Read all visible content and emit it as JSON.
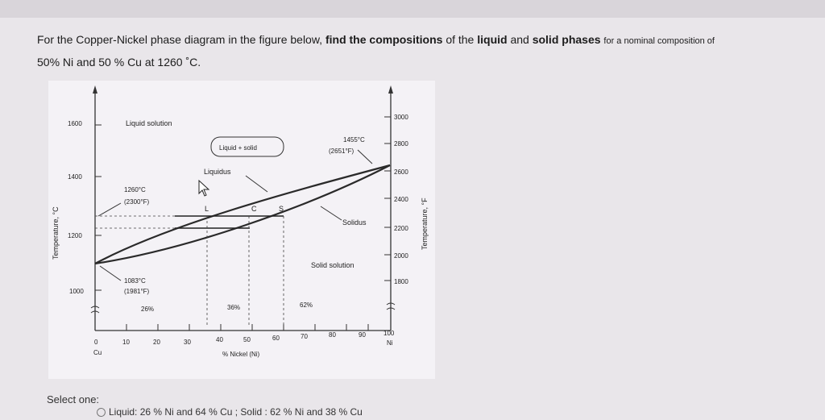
{
  "question": {
    "line1_a": "For the Copper-Nickel phase diagram in the figure below,",
    "line1_bold": "find the compositions",
    "line1_b": "of the",
    "bold_liquid": "liquid",
    "and": "and",
    "bold_solid": "solid phases",
    "line1_c": "for a nominal composition of",
    "line2": "50% Ni and 50 % Cu at 1260 ˚C."
  },
  "diagram": {
    "left_axis_label": "Temperature, °C",
    "right_axis_label": "Temperature, °F",
    "x_axis_label": "% Nickel (Ni)",
    "left_ticks": [
      "1600",
      "1400",
      "1200",
      "1000"
    ],
    "right_ticks": [
      "3000",
      "2800",
      "2600",
      "2400",
      "2200",
      "2000",
      "1800"
    ],
    "x_ticks": [
      "0",
      "10",
      "20",
      "30",
      "40",
      "50",
      "60",
      "70",
      "80",
      "90",
      "100"
    ],
    "x_end_left": "Cu",
    "x_end_right": "Ni",
    "liquid_solution": "Liquid solution",
    "liquid_plus_solid": "Liquid + solid",
    "liquidus": "Liquidus",
    "solidus": "Solidus",
    "solid_solution": "Solid solution",
    "temp_1455_c": "1455°C",
    "temp_1455_f": "(2651°F)",
    "temp_1260_c": "1260°C",
    "temp_1260_f": "(2300°F)",
    "temp_1083_c": "1083°C",
    "temp_1083_f": "(1981°F)",
    "point_L": "L",
    "point_C": "C",
    "point_S": "S",
    "pct_26": "26%",
    "pct_36": "36%",
    "pct_62": "62%"
  },
  "select": {
    "label": "Select one:",
    "option_a": "Liquid: 26 % Ni and 64 % Cu ; Solid : 62 % Ni and 38 % Cu"
  }
}
